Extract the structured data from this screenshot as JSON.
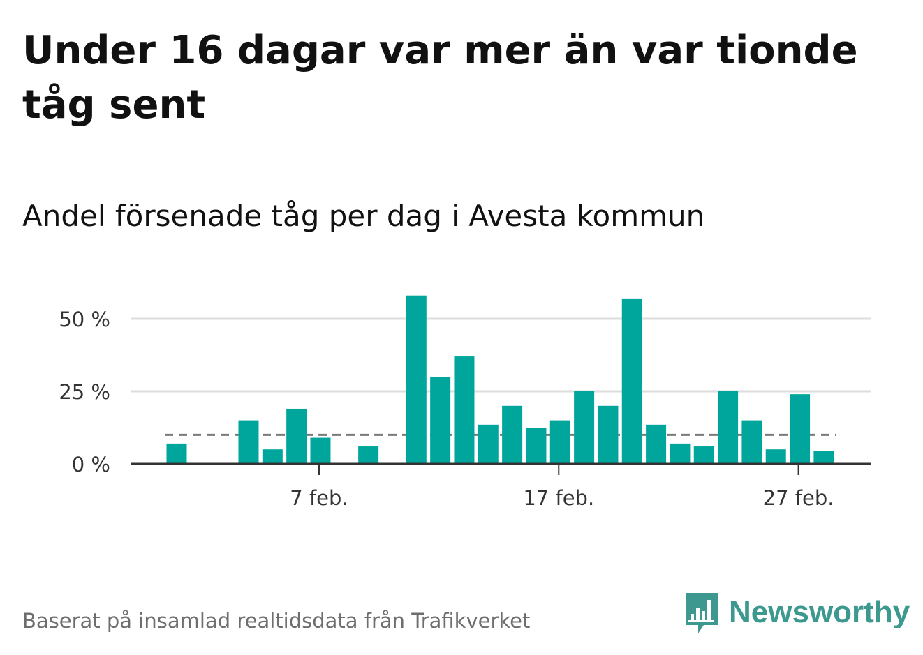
{
  "title": "Under 16 dagar var mer än var tionde tåg sent",
  "subtitle": "Andel försenade tåg per dag i Avesta kommun",
  "footer": "Baserat på insamlad realtidsdata från Trafikverket",
  "brand": {
    "name": "Newsworthy",
    "logo_icon": "newsworthy-logo-icon",
    "color": "#3d9990"
  },
  "chart_data": {
    "type": "bar",
    "x_unit": "day",
    "x": [
      "2/1",
      "2/2",
      "2/3",
      "2/4",
      "2/5",
      "2/6",
      "2/7",
      "2/8",
      "2/9",
      "2/10",
      "2/11",
      "2/12",
      "2/13",
      "2/14",
      "2/15",
      "2/16",
      "2/17",
      "2/18",
      "2/19",
      "2/20",
      "2/21",
      "2/22",
      "2/23",
      "2/24",
      "2/25",
      "2/26",
      "2/27",
      "2/28"
    ],
    "values": [
      7,
      0,
      0,
      15,
      5,
      19,
      9,
      0,
      6,
      0,
      58,
      30,
      37,
      13.5,
      20,
      12.5,
      15,
      25,
      20,
      57,
      13.5,
      7,
      6,
      25,
      15,
      5,
      24,
      4.5
    ],
    "reference_line": {
      "value": 10,
      "style": "dashed"
    },
    "ylim": [
      0,
      60
    ],
    "yticks": [
      0,
      25,
      50
    ],
    "ytick_labels": [
      "0 %",
      "25 %",
      "50 %"
    ],
    "xticks": [
      {
        "day_index": 6,
        "label": "7 feb."
      },
      {
        "day_index": 16,
        "label": "17 feb."
      },
      {
        "day_index": 26,
        "label": "27 feb."
      }
    ],
    "grid": true,
    "colors": {
      "bar": "#00a69c",
      "grid": "#dddddd",
      "axis": "#333333",
      "reference": "#7a7a7a"
    }
  }
}
